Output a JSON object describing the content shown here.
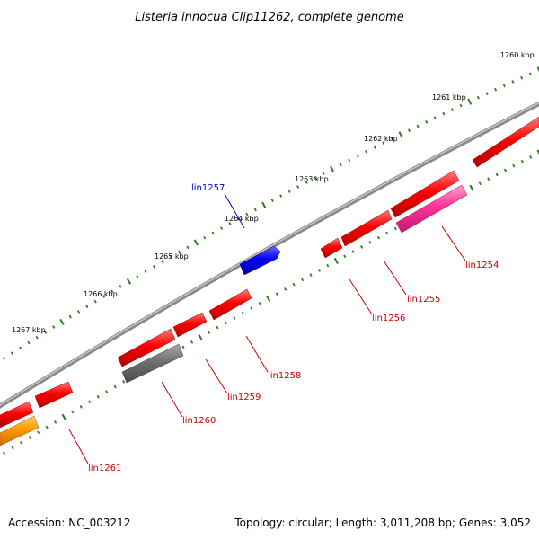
{
  "title": "Listeria innocua Clip11262, complete genome",
  "accession": "Accession: NC_003212",
  "summary": "Topology: circular; Length: 3,011,208 bp; Genes: 3,052",
  "tick_labels": [
    "1260 kbp",
    "1261 kbp",
    "1262 kbp",
    "1263 kbp",
    "1264 kbp",
    "1265 kbp",
    "1266 kbp",
    "1267 kbp"
  ],
  "genes": [
    {
      "name": "lin1254",
      "color": "#cc0000"
    },
    {
      "name": "lin1255",
      "color": "#cc0000"
    },
    {
      "name": "lin1256",
      "color": "#cc0000"
    },
    {
      "name": "lin1257",
      "color": "#0000cc"
    },
    {
      "name": "lin1258",
      "color": "#cc0000"
    },
    {
      "name": "lin1259",
      "color": "#cc0000"
    },
    {
      "name": "lin1260",
      "color": "#cc0000"
    },
    {
      "name": "lin1261",
      "color": "#cc0000"
    }
  ],
  "colors": {
    "backbone": "#8a8a8a",
    "tick": "#2e7d1e",
    "cds_red": "#ff0000",
    "cds_blue": "#0000ff",
    "cds_gray": "#707070",
    "cds_pink": "#ff3399",
    "cds_orange": "#ff9900"
  }
}
